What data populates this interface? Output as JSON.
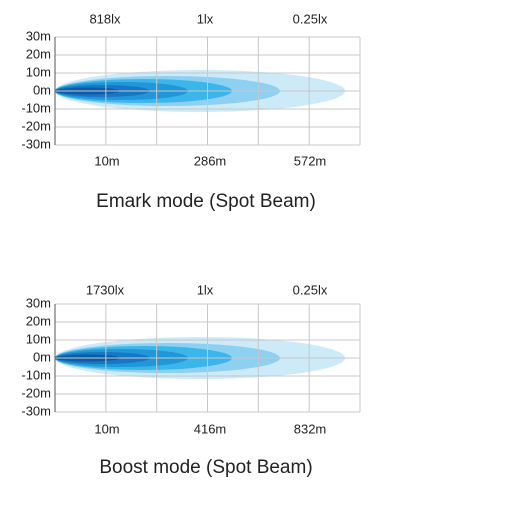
{
  "panels": [
    {
      "top_labels": [
        "818lx",
        "1lx",
        "0.25lx"
      ],
      "y_labels": [
        "30m",
        "20m",
        "10m",
        "0m",
        "-10m",
        "-20m",
        "-30m"
      ],
      "bottom_labels": [
        "10m",
        "286m",
        "572m"
      ],
      "caption": "Emark mode (Spot Beam)"
    },
    {
      "top_labels": [
        "1730lx",
        "1lx",
        "0.25lx"
      ],
      "y_labels": [
        "30m",
        "20m",
        "10m",
        "0m",
        "-10m",
        "-20m",
        "-30m"
      ],
      "bottom_labels": [
        "10m",
        "416m",
        "832m"
      ],
      "caption": "Boost mode (Spot Beam)"
    }
  ]
}
